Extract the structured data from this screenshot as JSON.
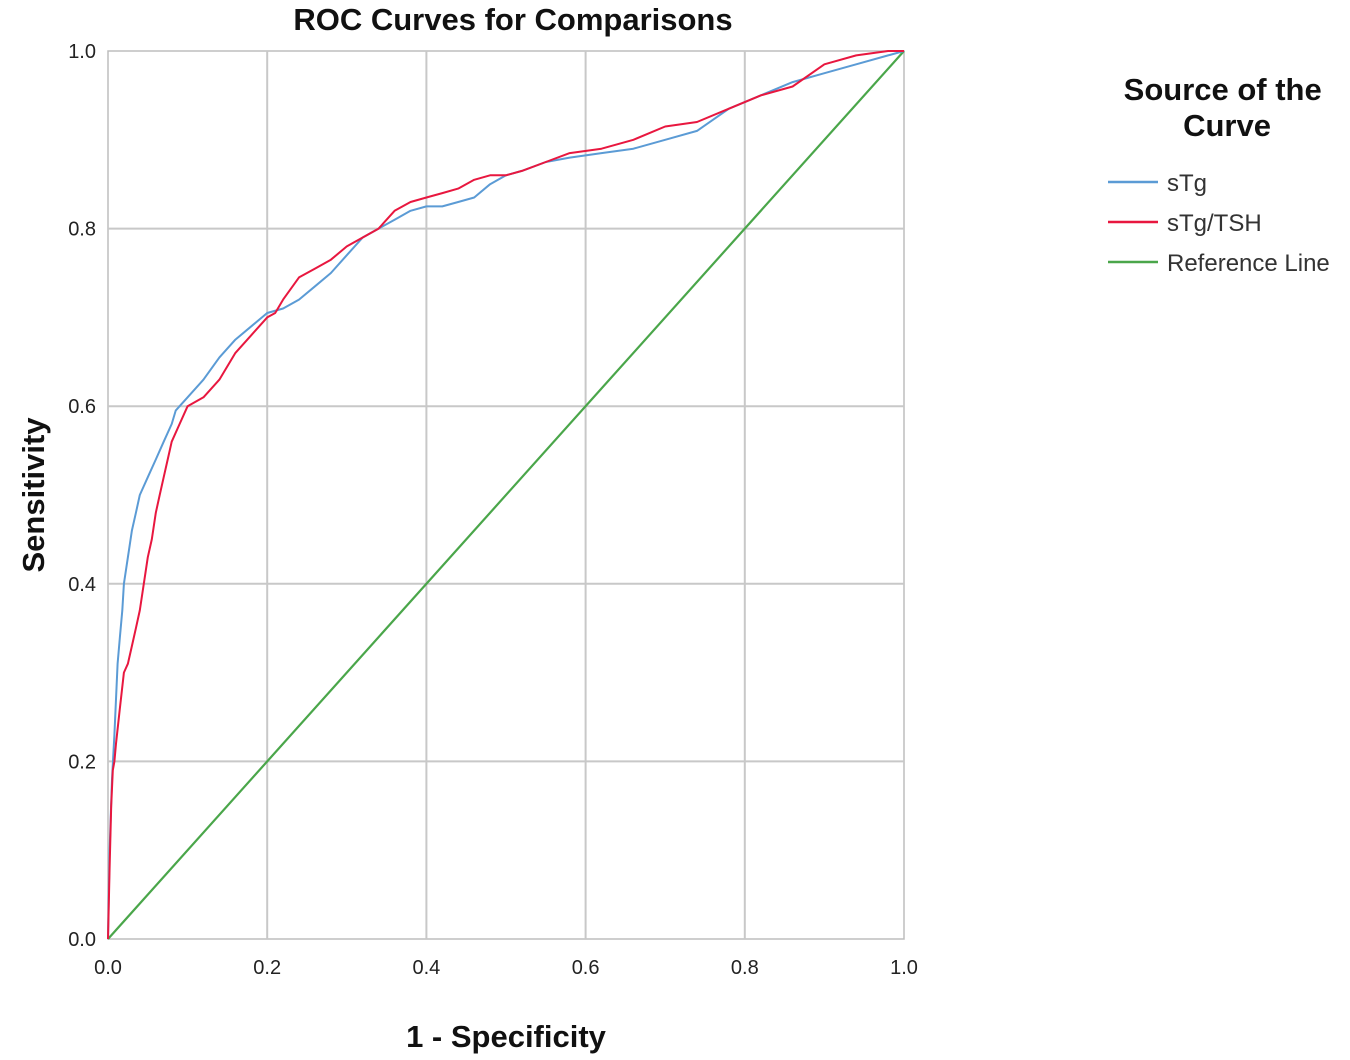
{
  "colors": {
    "sTg": "#5b9bd5",
    "sTg_TSH": "#e8173f",
    "reference": "#4aa64a",
    "grid": "#c8c8c8"
  },
  "chart_data": {
    "type": "line",
    "title": "ROC Curves for Comparisons",
    "xlabel": "1 - Specificity",
    "ylabel": "Sensitivity",
    "xlim": [
      0.0,
      1.0
    ],
    "ylim": [
      0.0,
      1.0
    ],
    "x_ticks": [
      "0.0",
      "0.2",
      "0.4",
      "0.6",
      "0.8",
      "1.0"
    ],
    "y_ticks": [
      "0.0",
      "0.2",
      "0.4",
      "0.6",
      "0.8",
      "1.0"
    ],
    "grid": true,
    "legend": {
      "title": "Source of the Curve",
      "title_lines": [
        "Source of the",
        "Curve"
      ],
      "position": "right"
    },
    "series": [
      {
        "name": "sTg",
        "color": "#5b9bd5",
        "x": [
          0.0,
          0.002,
          0.005,
          0.008,
          0.01,
          0.012,
          0.015,
          0.018,
          0.02,
          0.025,
          0.03,
          0.035,
          0.04,
          0.05,
          0.06,
          0.07,
          0.08,
          0.085,
          0.09,
          0.1,
          0.12,
          0.14,
          0.16,
          0.18,
          0.2,
          0.22,
          0.24,
          0.26,
          0.28,
          0.3,
          0.32,
          0.34,
          0.36,
          0.38,
          0.4,
          0.42,
          0.44,
          0.46,
          0.48,
          0.5,
          0.52,
          0.55,
          0.58,
          0.62,
          0.66,
          0.7,
          0.74,
          0.78,
          0.82,
          0.86,
          0.9,
          0.94,
          0.98,
          1.0
        ],
        "y": [
          0.0,
          0.1,
          0.18,
          0.23,
          0.27,
          0.31,
          0.34,
          0.37,
          0.4,
          0.43,
          0.46,
          0.48,
          0.5,
          0.52,
          0.54,
          0.56,
          0.58,
          0.595,
          0.6,
          0.61,
          0.63,
          0.655,
          0.675,
          0.69,
          0.705,
          0.71,
          0.72,
          0.735,
          0.75,
          0.77,
          0.79,
          0.8,
          0.81,
          0.82,
          0.825,
          0.825,
          0.83,
          0.835,
          0.85,
          0.86,
          0.865,
          0.875,
          0.88,
          0.885,
          0.89,
          0.9,
          0.91,
          0.935,
          0.95,
          0.965,
          0.975,
          0.985,
          0.995,
          1.0
        ]
      },
      {
        "name": "sTg/TSH",
        "color": "#e8173f",
        "x": [
          0.0,
          0.002,
          0.004,
          0.006,
          0.008,
          0.01,
          0.015,
          0.02,
          0.025,
          0.03,
          0.035,
          0.04,
          0.045,
          0.05,
          0.055,
          0.06,
          0.065,
          0.07,
          0.075,
          0.08,
          0.09,
          0.1,
          0.12,
          0.14,
          0.16,
          0.18,
          0.2,
          0.21,
          0.22,
          0.24,
          0.26,
          0.28,
          0.3,
          0.32,
          0.34,
          0.36,
          0.38,
          0.4,
          0.42,
          0.44,
          0.46,
          0.48,
          0.5,
          0.52,
          0.55,
          0.58,
          0.62,
          0.66,
          0.7,
          0.74,
          0.78,
          0.82,
          0.86,
          0.9,
          0.94,
          0.98,
          1.0
        ],
        "y": [
          0.0,
          0.08,
          0.15,
          0.19,
          0.2,
          0.22,
          0.26,
          0.3,
          0.31,
          0.33,
          0.35,
          0.37,
          0.4,
          0.43,
          0.45,
          0.48,
          0.5,
          0.52,
          0.54,
          0.56,
          0.58,
          0.6,
          0.61,
          0.63,
          0.66,
          0.68,
          0.7,
          0.705,
          0.72,
          0.745,
          0.755,
          0.765,
          0.78,
          0.79,
          0.8,
          0.82,
          0.83,
          0.835,
          0.84,
          0.845,
          0.855,
          0.86,
          0.86,
          0.865,
          0.875,
          0.885,
          0.89,
          0.9,
          0.915,
          0.92,
          0.935,
          0.95,
          0.96,
          0.985,
          0.995,
          1.0,
          1.0
        ]
      },
      {
        "name": "Reference Line",
        "color": "#4aa64a",
        "x": [
          0.0,
          1.0
        ],
        "y": [
          0.0,
          1.0
        ]
      }
    ]
  }
}
